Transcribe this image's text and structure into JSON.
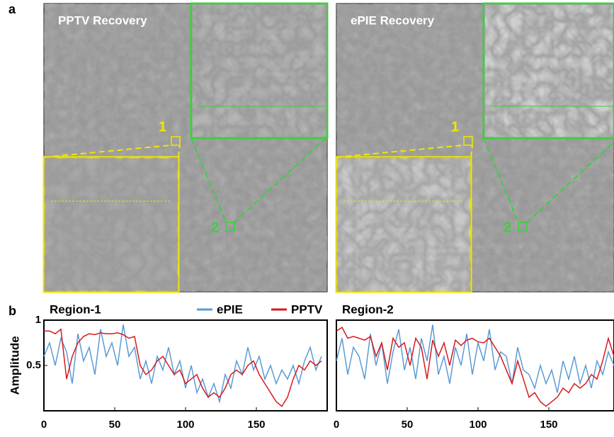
{
  "figure": {
    "panel_a": "a",
    "panel_b": "b",
    "images": [
      {
        "title": "PPTV Recovery",
        "region_labels": [
          "1",
          "2"
        ]
      },
      {
        "title": "ePIE Recovery",
        "region_labels": [
          "1",
          "2"
        ]
      }
    ]
  },
  "chart_data": [
    {
      "type": "line",
      "title": "Region-1",
      "ylabel": "Amplitude",
      "legend": "top",
      "x": [
        0,
        4,
        8,
        12,
        16,
        20,
        24,
        28,
        32,
        36,
        40,
        44,
        48,
        52,
        56,
        60,
        64,
        68,
        72,
        76,
        80,
        84,
        88,
        92,
        96,
        100,
        104,
        108,
        112,
        116,
        120,
        124,
        128,
        132,
        136,
        140,
        144,
        148,
        152,
        156,
        160,
        164,
        168,
        172,
        176,
        180,
        184,
        188,
        192,
        196
      ],
      "xlim": [
        0,
        200
      ],
      "xticks": [
        0,
        50,
        100,
        150
      ],
      "ylim": [
        0,
        1
      ],
      "yticks": [
        0.5,
        1
      ],
      "series": [
        {
          "name": "ePIE",
          "color": "#5b9bd5",
          "values": [
            0.6,
            0.75,
            0.5,
            0.8,
            0.65,
            0.3,
            0.85,
            0.55,
            0.7,
            0.4,
            0.9,
            0.6,
            0.75,
            0.5,
            0.95,
            0.6,
            0.7,
            0.35,
            0.55,
            0.3,
            0.6,
            0.45,
            0.7,
            0.4,
            0.55,
            0.25,
            0.5,
            0.2,
            0.35,
            0.15,
            0.3,
            0.1,
            0.4,
            0.25,
            0.55,
            0.4,
            0.7,
            0.45,
            0.6,
            0.35,
            0.5,
            0.3,
            0.45,
            0.35,
            0.5,
            0.3,
            0.55,
            0.7,
            0.45,
            0.6
          ]
        },
        {
          "name": "PPTV",
          "color": "#d7191c",
          "values": [
            0.88,
            0.88,
            0.85,
            0.9,
            0.35,
            0.6,
            0.75,
            0.82,
            0.85,
            0.84,
            0.86,
            0.85,
            0.85,
            0.86,
            0.84,
            0.8,
            0.82,
            0.5,
            0.4,
            0.45,
            0.55,
            0.6,
            0.5,
            0.4,
            0.45,
            0.3,
            0.35,
            0.4,
            0.25,
            0.15,
            0.2,
            0.15,
            0.25,
            0.4,
            0.45,
            0.4,
            0.5,
            0.55,
            0.4,
            0.3,
            0.2,
            0.1,
            0.05,
            0.15,
            0.35,
            0.5,
            0.45,
            0.55,
            0.5,
            0.55
          ]
        }
      ]
    },
    {
      "type": "line",
      "title": "Region-2",
      "x": [
        0,
        4,
        8,
        12,
        16,
        20,
        24,
        28,
        32,
        36,
        40,
        44,
        48,
        52,
        56,
        60,
        64,
        68,
        72,
        76,
        80,
        84,
        88,
        92,
        96,
        100,
        104,
        108,
        112,
        116,
        120,
        124,
        128,
        132,
        136,
        140,
        144,
        148,
        152,
        156,
        160,
        164,
        168,
        172,
        176,
        180,
        184,
        188,
        192,
        196
      ],
      "xlim": [
        0,
        196
      ],
      "xticks": [
        0,
        50,
        100,
        150
      ],
      "ylim": [
        0,
        1
      ],
      "series": [
        {
          "color": "#5b9bd5",
          "values": [
            0.55,
            0.8,
            0.4,
            0.7,
            0.6,
            0.35,
            0.85,
            0.5,
            0.75,
            0.3,
            0.65,
            0.9,
            0.45,
            0.7,
            0.35,
            0.8,
            0.55,
            0.95,
            0.4,
            0.6,
            0.3,
            0.7,
            0.5,
            0.85,
            0.4,
            0.75,
            0.55,
            0.9,
            0.45,
            0.65,
            0.6,
            0.3,
            0.7,
            0.45,
            0.4,
            0.25,
            0.5,
            0.3,
            0.45,
            0.2,
            0.55,
            0.35,
            0.6,
            0.3,
            0.5,
            0.25,
            0.55,
            0.4,
            0.65,
            0.5
          ]
        },
        {
          "color": "#d7191c",
          "values": [
            0.88,
            0.92,
            0.8,
            0.82,
            0.8,
            0.78,
            0.82,
            0.6,
            0.75,
            0.45,
            0.8,
            0.7,
            0.75,
            0.5,
            0.8,
            0.7,
            0.35,
            0.78,
            0.6,
            0.75,
            0.5,
            0.78,
            0.72,
            0.78,
            0.8,
            0.76,
            0.75,
            0.8,
            0.7,
            0.6,
            0.45,
            0.3,
            0.55,
            0.35,
            0.15,
            0.2,
            0.1,
            0.05,
            0.1,
            0.15,
            0.25,
            0.2,
            0.3,
            0.25,
            0.3,
            0.4,
            0.35,
            0.55,
            0.8,
            0.6
          ]
        }
      ]
    }
  ]
}
